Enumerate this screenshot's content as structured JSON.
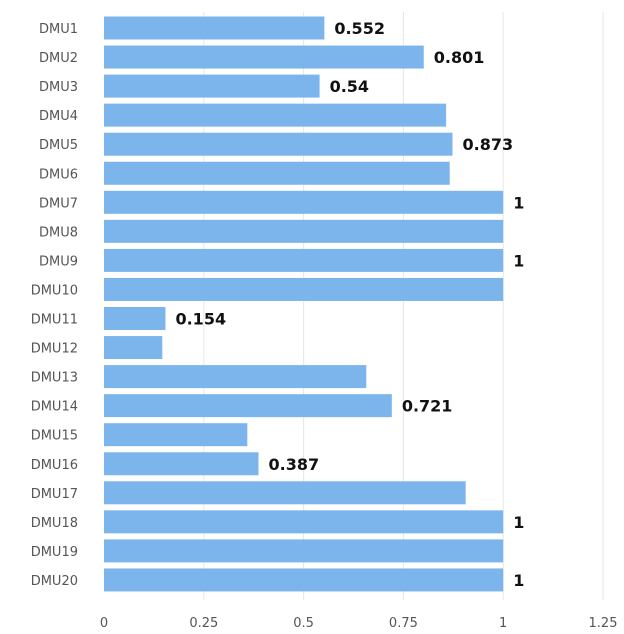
{
  "chart_data": {
    "type": "bar",
    "orientation": "horizontal",
    "categories": [
      "DMU1",
      "DMU2",
      "DMU3",
      "DMU4",
      "DMU5",
      "DMU6",
      "DMU7",
      "DMU8",
      "DMU9",
      "DMU10",
      "DMU11",
      "DMU12",
      "DMU13",
      "DMU14",
      "DMU15",
      "DMU16",
      "DMU17",
      "DMU18",
      "DMU19",
      "DMU20"
    ],
    "values": [
      0.552,
      0.801,
      0.54,
      0.857,
      0.873,
      0.866,
      1,
      1,
      1,
      1,
      0.154,
      0.146,
      0.657,
      0.721,
      0.359,
      0.387,
      0.906,
      1,
      1,
      1
    ],
    "data_labels": [
      "0.552",
      "0.801",
      "0.54",
      "",
      "0.873",
      "",
      "1",
      "",
      "1",
      "",
      "0.154",
      "",
      "",
      "0.721",
      "",
      "0.387",
      "",
      "1",
      "",
      "1"
    ],
    "xlim": [
      0,
      1.25
    ],
    "x_ticks": [
      "0",
      "0.25",
      "0.5",
      "0.75",
      "1",
      "1.25"
    ],
    "x_tick_values": [
      0,
      0.25,
      0.5,
      0.75,
      1,
      1.25
    ],
    "grid": "vertical",
    "bar_color": "#7cb5ec",
    "title": "",
    "xlabel": "",
    "ylabel": ""
  }
}
